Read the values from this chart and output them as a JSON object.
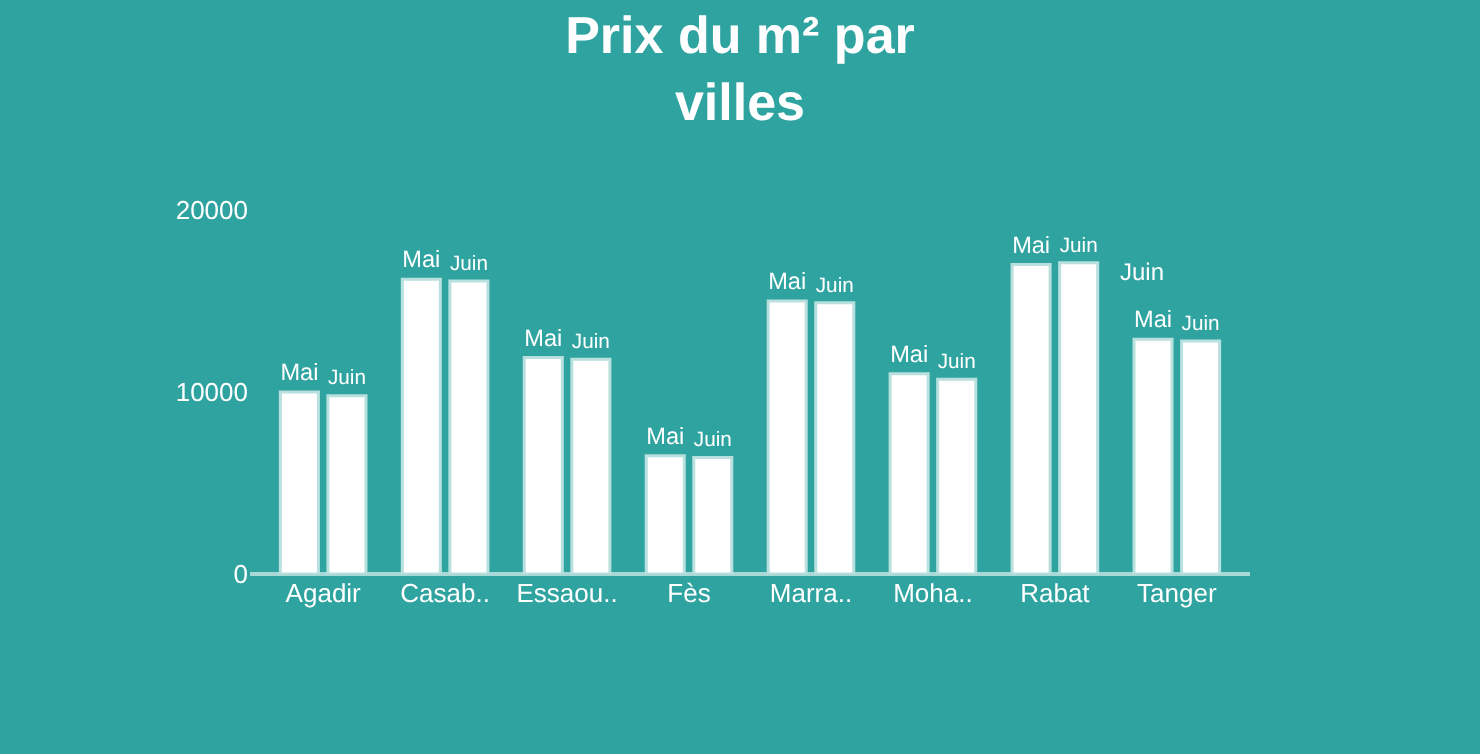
{
  "chart_data": {
    "type": "bar",
    "title": "Prix du m² par villes",
    "categories": [
      "Agadir",
      "Casab..",
      "Essaou..",
      "Fès",
      "Marra..",
      "Moha..",
      "Rabat",
      "Tanger"
    ],
    "series": [
      {
        "name": "Mai",
        "color": "#ffffff",
        "values": [
          10000,
          16200,
          11900,
          6500,
          15000,
          11000,
          17000,
          12900
        ]
      },
      {
        "name": "Juin",
        "color": "#ffffff",
        "values": [
          9800,
          16100,
          11800,
          6400,
          14900,
          10700,
          17100,
          12800
        ]
      }
    ],
    "annotations": [
      "Juin"
    ],
    "ylim": [
      0,
      20000
    ],
    "yticks": [
      0,
      10000,
      20000
    ],
    "grid": false,
    "legend": false
  }
}
